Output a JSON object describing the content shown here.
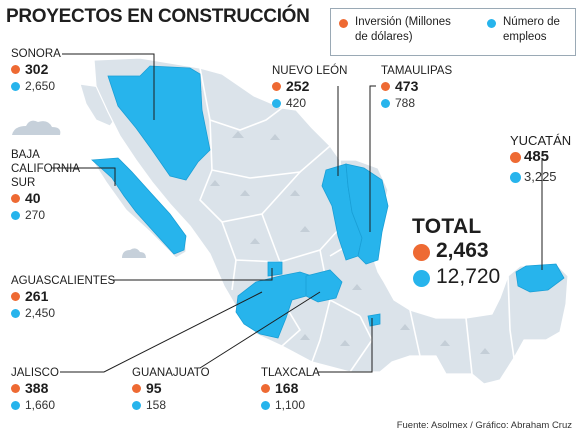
{
  "title": "PROYECTOS EN CONSTRUCCIÓN",
  "legend": {
    "investment": {
      "label": "Inversión (Millones de dólares)",
      "line1": "Inversión (Millones",
      "line2": "de dólares)",
      "color": "#ee6a33"
    },
    "jobs": {
      "label": "Número de empleos",
      "line1": "Número de",
      "line2": "empleos",
      "color": "#27b4ec"
    }
  },
  "colors": {
    "land": "#dbe3ea",
    "land_dark": "#c4ced7",
    "highlight": "#27b4ec",
    "cloud": "#c6d0da",
    "leader": "#1e1e1e"
  },
  "states": [
    {
      "name": "SONORA",
      "investment": "302",
      "jobs": "2,650"
    },
    {
      "name": "BAJA CALIFORNIA SUR",
      "name_lines": [
        "BAJA",
        "CALIFORNIA",
        "SUR"
      ],
      "investment": "40",
      "jobs": "270"
    },
    {
      "name": "AGUASCALIENTES",
      "investment": "261",
      "jobs": "2,450"
    },
    {
      "name": "JALISCO",
      "investment": "388",
      "jobs": "1,660"
    },
    {
      "name": "GUANAJUATO",
      "investment": "95",
      "jobs": "158"
    },
    {
      "name": "TLAXCALA",
      "investment": "168",
      "jobs": "1,100"
    },
    {
      "name": "NUEVO LEÓN",
      "investment": "252",
      "jobs": "420"
    },
    {
      "name": "TAMAULIPAS",
      "investment": "473",
      "jobs": "788"
    },
    {
      "name": "YUCATÁN",
      "investment": "485",
      "jobs": "3,225"
    }
  ],
  "total": {
    "label": "TOTAL",
    "investment": "2,463",
    "jobs": "12,720"
  },
  "source": "Fuente: Asolmex / Gráfico: Abraham Cruz"
}
